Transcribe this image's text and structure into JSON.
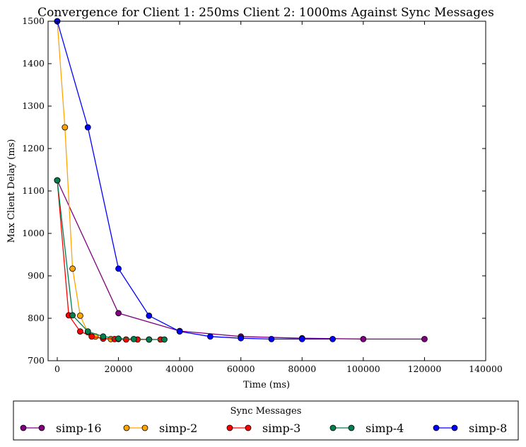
{
  "chart_data": {
    "type": "line",
    "title": "Convergence for Client 1: 250ms Client 2: 1000ms Against Sync Messages",
    "xlabel": "Time (ms)",
    "ylabel": "Max Client Delay (ms)",
    "xlim": [
      -3000,
      140000
    ],
    "ylim": [
      700,
      1500
    ],
    "xticks": [
      0,
      20000,
      40000,
      60000,
      80000,
      100000,
      120000,
      140000
    ],
    "yticks": [
      700,
      800,
      900,
      1000,
      1100,
      1200,
      1300,
      1400,
      1500
    ],
    "grid": false,
    "legend": {
      "title": "Sync Messages",
      "placement": "below-plot"
    },
    "series": [
      {
        "name": "simp-16",
        "color": "#800080",
        "points": [
          [
            0,
            1125
          ],
          [
            20000,
            812
          ],
          [
            40000,
            770
          ],
          [
            60000,
            757
          ],
          [
            80000,
            753
          ],
          [
            100000,
            751
          ],
          [
            120000,
            751
          ]
        ]
      },
      {
        "name": "simp-2",
        "color": "#FFA500",
        "points": [
          [
            0,
            1500
          ],
          [
            2500,
            1250
          ],
          [
            5000,
            917
          ],
          [
            7500,
            806
          ],
          [
            10000,
            767
          ],
          [
            12500,
            757
          ],
          [
            15000,
            753
          ],
          [
            17500,
            751
          ],
          [
            20000,
            751
          ]
        ]
      },
      {
        "name": "simp-3",
        "color": "#FF0000",
        "points": [
          [
            0,
            1125
          ],
          [
            3750,
            807
          ],
          [
            7500,
            769
          ],
          [
            11250,
            757
          ],
          [
            15000,
            752
          ],
          [
            18750,
            751
          ],
          [
            22500,
            750
          ],
          [
            26250,
            750
          ],
          [
            30000,
            750
          ],
          [
            33750,
            750
          ]
        ]
      },
      {
        "name": "simp-4",
        "color": "#007F4F",
        "points": [
          [
            0,
            1125
          ],
          [
            5000,
            807
          ],
          [
            10000,
            769
          ],
          [
            15000,
            757
          ],
          [
            20000,
            752
          ],
          [
            25000,
            751
          ],
          [
            30000,
            750
          ],
          [
            35000,
            750
          ]
        ]
      },
      {
        "name": "simp-8",
        "color": "#0000FF",
        "points": [
          [
            0,
            1500
          ],
          [
            10000,
            1250
          ],
          [
            20000,
            917
          ],
          [
            30000,
            806
          ],
          [
            40000,
            769
          ],
          [
            50000,
            757
          ],
          [
            60000,
            753
          ],
          [
            70000,
            751
          ],
          [
            80000,
            751
          ],
          [
            90000,
            751
          ]
        ]
      }
    ]
  }
}
